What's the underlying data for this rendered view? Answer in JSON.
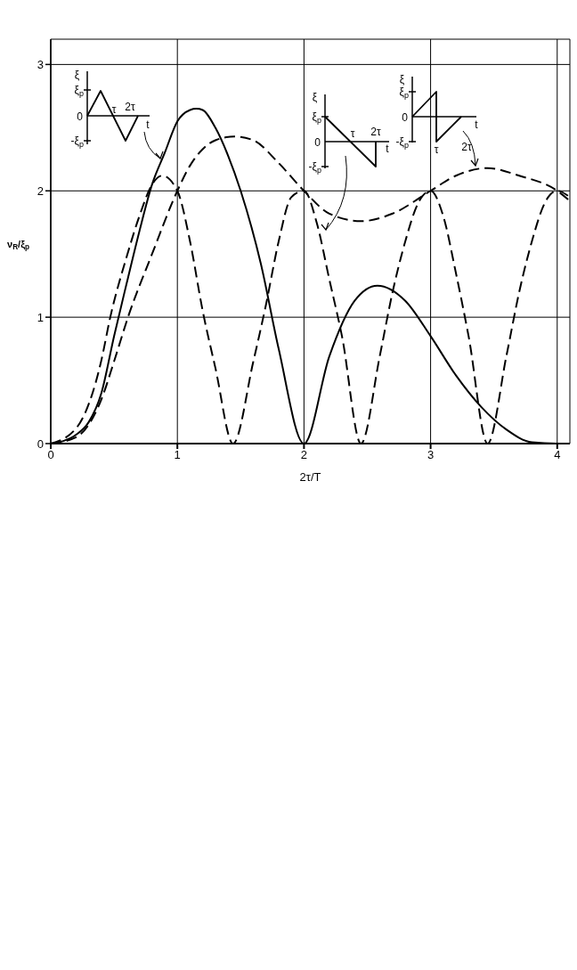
{
  "chart_data": {
    "type": "line",
    "xlabel": "2τ/T",
    "ylabel": "ν$_{R}$/ξ$_{p}$",
    "xlim": [
      0,
      4.1
    ],
    "ylim": [
      0,
      3.2
    ],
    "xticks": [
      0,
      1,
      2,
      3,
      4
    ],
    "yticks": [
      0,
      1,
      2,
      3
    ],
    "grid": true,
    "marker": "none",
    "series": [
      {
        "color": "#000000",
        "line_style": "solid",
        "x": [
          0,
          0.1,
          0.2,
          0.3,
          0.4,
          0.5,
          0.6,
          0.7,
          0.8,
          0.9,
          1,
          1.1,
          1.15,
          1.2,
          1.3,
          1.4,
          1.5,
          1.66,
          1.8,
          2,
          2.2,
          2.4,
          2.58,
          2.8,
          3,
          3.2,
          3.4,
          3.6,
          3.8,
          4,
          4.1
        ],
        "values": [
          0,
          0.02,
          0.07,
          0.17,
          0.4,
          0.85,
          1.27,
          1.68,
          2.05,
          2.3,
          2.55,
          2.64,
          2.65,
          2.64,
          2.5,
          2.28,
          2,
          1.42,
          0.75,
          0,
          0.69,
          1.13,
          1.25,
          1.13,
          0.85,
          0.54,
          0.29,
          0.11,
          0.01,
          0,
          0
        ]
      },
      {
        "color": "#000000",
        "line_style": "dashed",
        "x": [
          0,
          0.2,
          0.4,
          0.5,
          0.61,
          0.8,
          1,
          1.1,
          1.2,
          1.3,
          1.45,
          1.6,
          1.8,
          2,
          2.2,
          2.45,
          2.7,
          3,
          3.2,
          3.45,
          3.7,
          4,
          4.1
        ],
        "values": [
          0,
          0.05,
          0.35,
          0.65,
          1,
          1.5,
          2,
          2.2,
          2.33,
          2.4,
          2.43,
          2.4,
          2.22,
          2,
          1.82,
          1.76,
          1.82,
          2,
          2.12,
          2.18,
          2.12,
          2,
          1.92
        ]
      },
      {
        "color": "#000000",
        "line_style": "dashed",
        "x": [
          0,
          0.2,
          0.4,
          0.47,
          0.6,
          0.7,
          0.8,
          0.88,
          1,
          1.1,
          1.2,
          1.3,
          1.44,
          1.6,
          1.7,
          1.8,
          1.9,
          2,
          2.1,
          2.2,
          2.3,
          2.45,
          2.6,
          2.7,
          2.8,
          2.9,
          3,
          3.1,
          3.2,
          3.3,
          3.45,
          3.6,
          3.7,
          3.8,
          3.9,
          4,
          4.1
        ],
        "values": [
          0,
          0.12,
          0.66,
          1,
          1.48,
          1.8,
          2.05,
          2.12,
          2,
          1.6,
          1.05,
          0.6,
          0,
          0.65,
          1.1,
          1.6,
          1.95,
          2,
          1.75,
          1.3,
          0.85,
          0,
          0.7,
          1.2,
          1.6,
          1.9,
          2,
          1.8,
          1.35,
          0.85,
          0,
          0.7,
          1.2,
          1.6,
          1.9,
          2,
          1.95
        ]
      }
    ],
    "annotations": [
      "ξ",
      "ξ$_{p}$",
      "0",
      "-ξ$_{p}$",
      "τ",
      "2τ",
      "t",
      "ξ",
      "ξ$_{p}$",
      "0",
      "-ξ$_{p}$",
      "τ",
      "2τ",
      "t",
      "ξ",
      "ξ$_{p}$",
      "0",
      "-ξ$_{p}$",
      "τ",
      "2τ",
      "t"
    ]
  }
}
